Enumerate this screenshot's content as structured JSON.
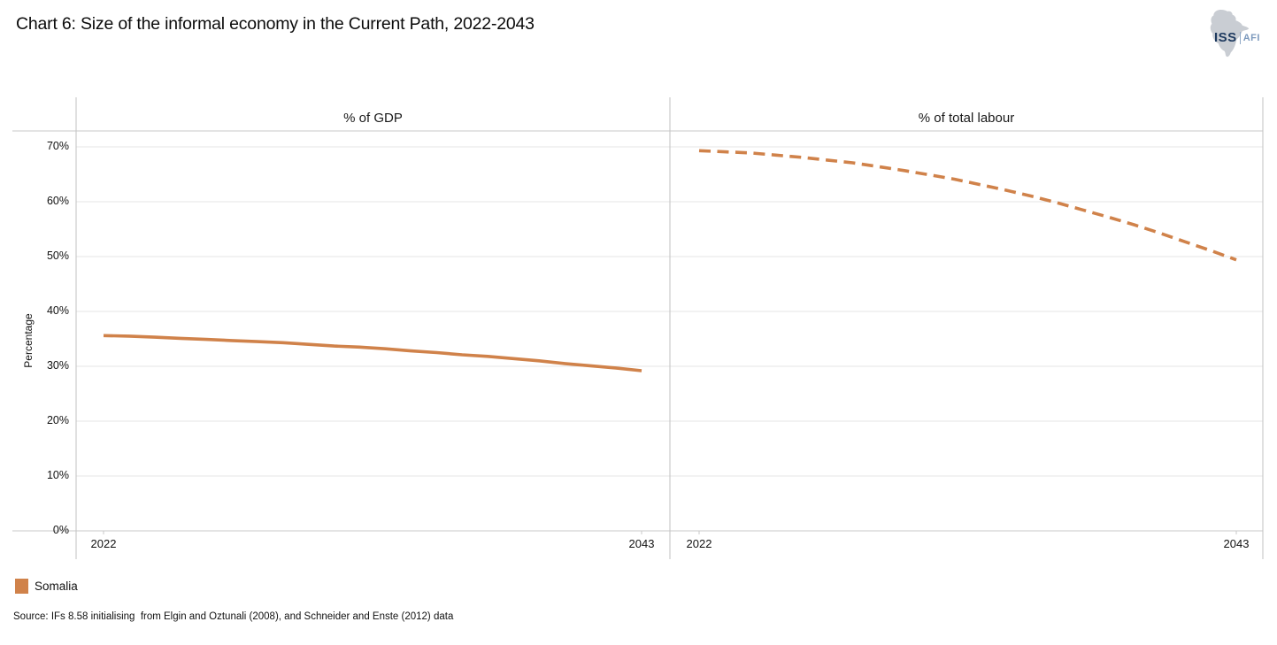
{
  "header": {
    "title": "Chart 6: Size of the informal economy in the Current Path, 2022-2043",
    "logo": {
      "icon": "africa-map-icon",
      "primary": "ISS",
      "secondary": "AFI",
      "primary_color": "#1e3a5f",
      "secondary_color": "#7c99bd",
      "map_color": "#c9cdd3"
    }
  },
  "chart_data": {
    "type": "line",
    "title": "Chart 6: Size of the informal economy in the Current Path, 2022-2043",
    "ylabel": "Percentage",
    "ylim": [
      0,
      70
    ],
    "yticks": [
      "0%",
      "10%",
      "20%",
      "30%",
      "40%",
      "50%",
      "60%",
      "70%"
    ],
    "grid": true,
    "legend_position": "bottom-left",
    "series_color": "#d0824a",
    "years": [
      2022,
      2023,
      2024,
      2025,
      2026,
      2027,
      2028,
      2029,
      2030,
      2031,
      2032,
      2033,
      2034,
      2035,
      2036,
      2037,
      2038,
      2039,
      2040,
      2041,
      2042,
      2043
    ],
    "panels": [
      {
        "title": "% of GDP",
        "series_name": "Somalia",
        "line_style": "solid",
        "x_labels": [
          "2022",
          "2043"
        ],
        "values": [
          35.6,
          35.5,
          35.3,
          35.1,
          34.9,
          34.7,
          34.5,
          34.3,
          34.0,
          33.7,
          33.5,
          33.2,
          32.8,
          32.5,
          32.1,
          31.8,
          31.4,
          31.0,
          30.5,
          30.1,
          29.7,
          29.2
        ]
      },
      {
        "title": "% of total labour",
        "series_name": "Somalia",
        "line_style": "dashed",
        "x_labels": [
          "2022",
          "2043"
        ],
        "values": [
          69.3,
          69.1,
          68.9,
          68.5,
          68.1,
          67.6,
          67.1,
          66.4,
          65.7,
          64.9,
          64.1,
          63.1,
          62.1,
          61.0,
          59.8,
          58.5,
          57.2,
          55.8,
          54.3,
          52.7,
          51.1,
          49.4
        ]
      }
    ]
  },
  "legend": {
    "items": [
      {
        "label": "Somalia",
        "color": "#d0824a"
      }
    ]
  },
  "source": "Source: IFs 8.58 initialising  from Elgin and Oztunali (2008), and Schneider and Enste (2012) data"
}
